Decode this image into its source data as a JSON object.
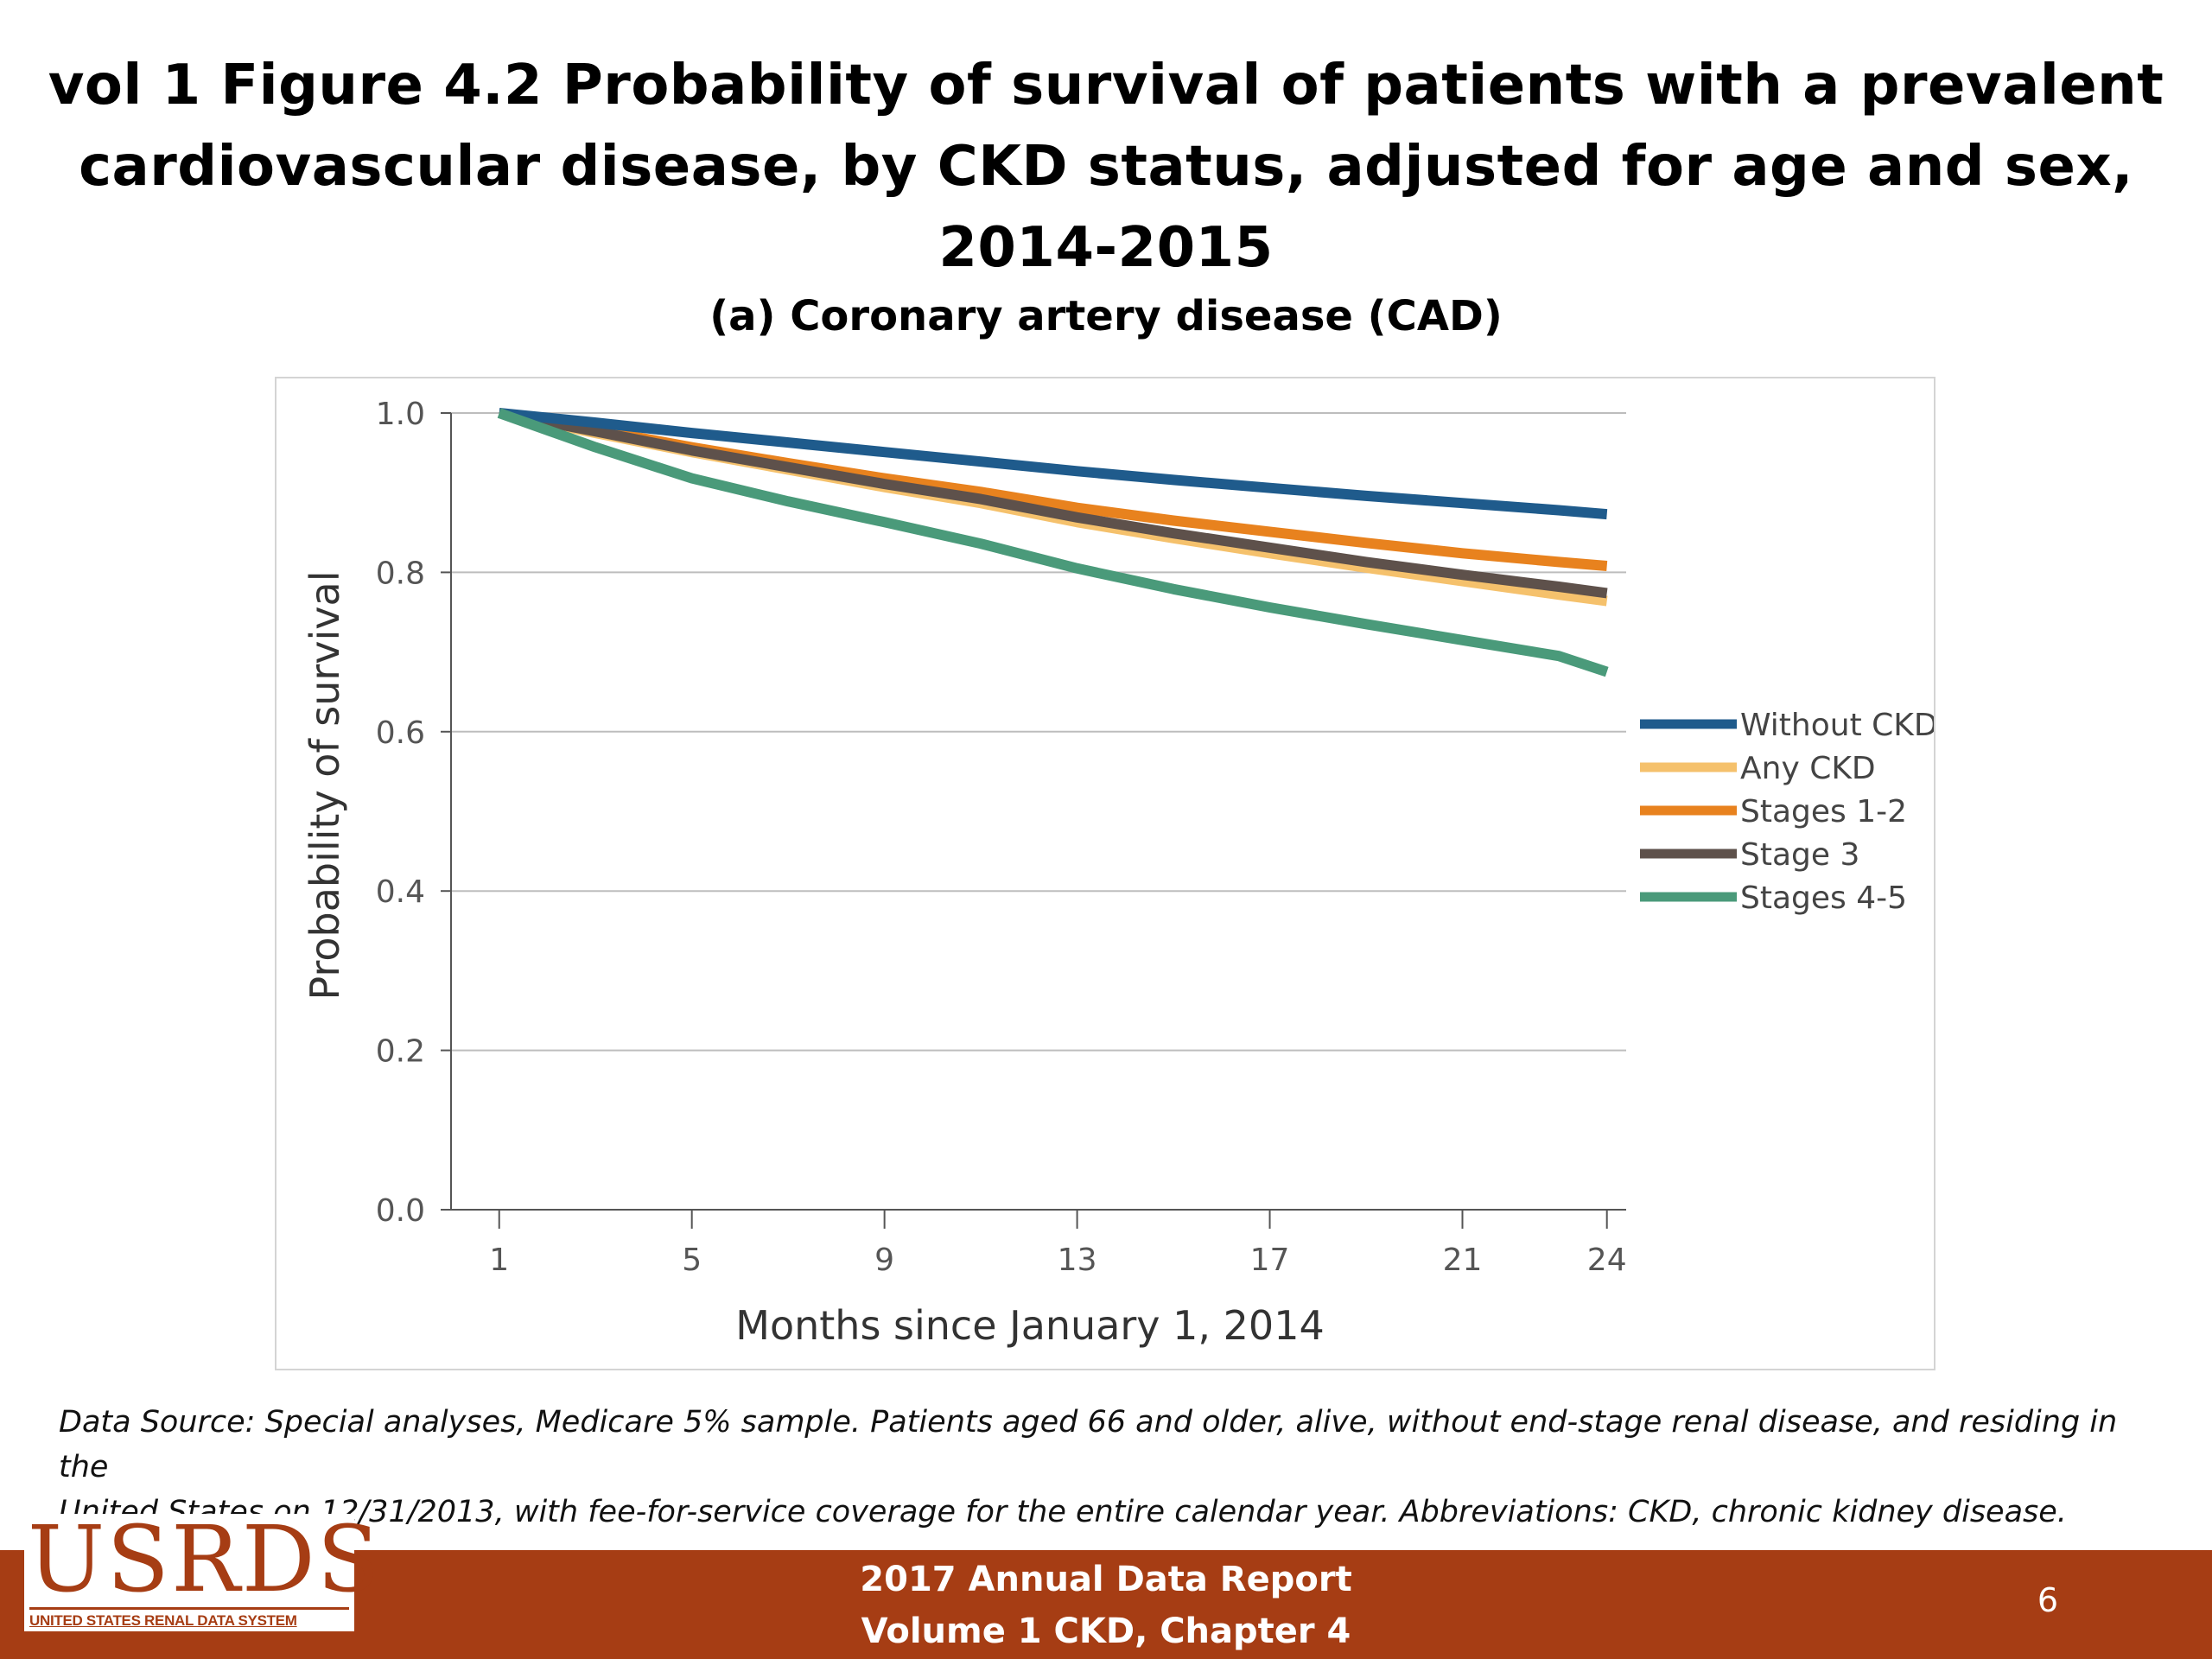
{
  "slide": {
    "title_line1": "vol 1 Figure 4.2 Probability of survival of patients with a prevalent",
    "title_line2": "cardiovascular disease, by CKD status, adjusted for age and sex, 2014-2015"
  },
  "chart_data": {
    "type": "line",
    "title": "(a) Coronary artery disease (CAD)",
    "xlabel": "Months since January 1, 2014",
    "ylabel": "Probability of survival",
    "xlim": [
      0,
      24.4
    ],
    "ylim": [
      0,
      1.0
    ],
    "xticks": [
      1,
      5,
      9,
      13,
      17,
      21,
      24
    ],
    "yticks": [
      0.0,
      0.2,
      0.4,
      0.6,
      0.8,
      1.0
    ],
    "ytick_labels": [
      "0.0",
      "0.2",
      "0.4",
      "0.6",
      "0.8",
      "1.0"
    ],
    "grid": "horizontal",
    "legend_position": "right",
    "x": [
      1,
      3,
      5,
      7,
      9,
      11,
      13,
      15,
      17,
      19,
      21,
      23,
      24
    ],
    "series": [
      {
        "name": "Without CKD",
        "color": "#1f5b8c",
        "values": [
          1.0,
          0.988,
          0.975,
          0.963,
          0.951,
          0.939,
          0.927,
          0.916,
          0.906,
          0.896,
          0.887,
          0.878,
          0.873
        ]
      },
      {
        "name": "Any CKD",
        "color": "#f5c16c",
        "values": [
          1.0,
          0.975,
          0.951,
          0.929,
          0.907,
          0.887,
          0.863,
          0.843,
          0.824,
          0.806,
          0.789,
          0.772,
          0.764
        ]
      },
      {
        "name": "Stages 1-2",
        "color": "#e8821e",
        "values": [
          1.0,
          0.979,
          0.957,
          0.937,
          0.918,
          0.901,
          0.881,
          0.865,
          0.851,
          0.837,
          0.824,
          0.813,
          0.808
        ]
      },
      {
        "name": "Stage 3",
        "color": "#5e514b",
        "values": [
          1.0,
          0.977,
          0.953,
          0.932,
          0.911,
          0.892,
          0.869,
          0.849,
          0.831,
          0.813,
          0.797,
          0.782,
          0.774
        ]
      },
      {
        "name": "Stages 4-5",
        "color": "#4a9a7a",
        "values": [
          1.0,
          0.957,
          0.918,
          0.889,
          0.863,
          0.836,
          0.805,
          0.779,
          0.756,
          0.735,
          0.715,
          0.695,
          0.675
        ]
      }
    ]
  },
  "datasource": {
    "line1": "Data Source: Special analyses, Medicare 5% sample. Patients aged 66 and older, alive, without end-stage renal disease, and residing in the",
    "line2": "United States on 12/31/2013, with fee-for-service coverage for the entire calendar year. Abbreviations: CKD, chronic kidney disease."
  },
  "footer": {
    "line1": "2017 Annual Data Report",
    "line2": "Volume 1 CKD, Chapter 4",
    "page_number": "6"
  },
  "logo": {
    "word": "USRDS",
    "subtitle": "UNITED STATES RENAL DATA SYSTEM"
  }
}
